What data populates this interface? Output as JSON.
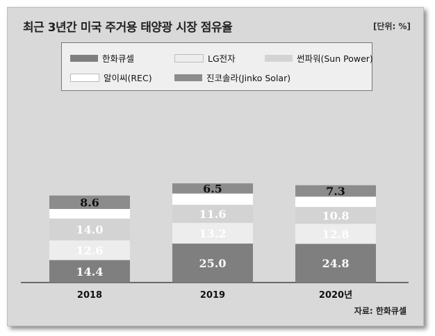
{
  "title": "최근 3년간 미국 주거용 태양광 시장 점유율",
  "unit": "[단위: %]",
  "source": "자료: 한화큐셀",
  "colors": {
    "hanwha": "#7f7f7f",
    "lg": "#ededed",
    "sunpower": "#d3d3d3",
    "rec": "#ffffff",
    "jinko": "#8c8c8c"
  },
  "chart_data": {
    "type": "bar",
    "stacked": true,
    "categories": [
      "2018",
      "2019",
      "2020년"
    ],
    "series": [
      {
        "name": "한화큐셀",
        "key": "hanwha",
        "values": [
          14.4,
          25.0,
          24.8
        ],
        "labels": [
          "14.4",
          "25.0",
          "24.8"
        ]
      },
      {
        "name": "LG전자",
        "key": "lg",
        "values": [
          12.6,
          13.2,
          12.8
        ],
        "labels": [
          "12.6",
          "13.2",
          "12.8"
        ]
      },
      {
        "name": "썬파워(Sun Power)",
        "key": "sunpower",
        "values": [
          14.0,
          11.6,
          10.8
        ],
        "labels": [
          "14.0",
          "11.6",
          "10.8"
        ]
      },
      {
        "name": "알이씨(REC)",
        "key": "rec",
        "values": [
          6.1,
          7.2,
          6.6
        ],
        "labels": [
          "",
          "",
          ""
        ]
      },
      {
        "name": "진코솔라(Jinko Solar)",
        "key": "jinko",
        "values": [
          8.6,
          6.5,
          7.3
        ],
        "labels": [
          "8.6",
          "6.5",
          "7.3"
        ]
      }
    ],
    "ylim": [
      0,
      100
    ],
    "legend_position": "top"
  }
}
